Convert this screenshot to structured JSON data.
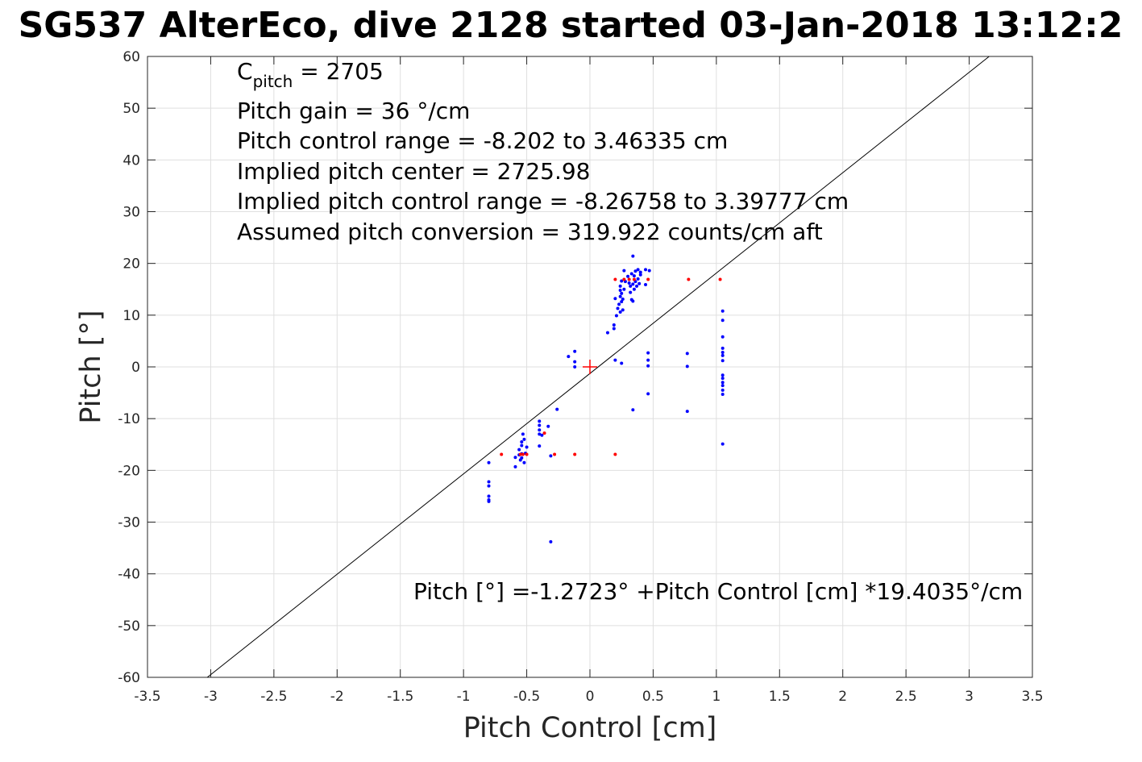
{
  "chart_data": {
    "type": "scatter",
    "title": "SG537 AlterEco, dive 2128 started 03-Jan-2018 13:12:2",
    "xlabel": "Pitch Control [cm]",
    "ylabel": "Pitch [°]",
    "xlim": [
      -3.5,
      3.5
    ],
    "ylim": [
      -60,
      60
    ],
    "xticks": [
      -3.5,
      -3,
      -2.5,
      -2,
      -1.5,
      -1,
      -0.5,
      0,
      0.5,
      1,
      1.5,
      2,
      2.5,
      3,
      3.5
    ],
    "yticks": [
      -60,
      -50,
      -40,
      -30,
      -20,
      -10,
      0,
      10,
      20,
      30,
      40,
      50,
      60
    ],
    "xtick_labels": [
      "-3.5",
      "-3",
      "-2.5",
      "-2",
      "-1.5",
      "-1",
      "-0.5",
      "0",
      "0.5",
      "1",
      "1.5",
      "2",
      "2.5",
      "3",
      "3.5"
    ],
    "ytick_labels": [
      "-60",
      "-50",
      "-40",
      "-30",
      "-20",
      "-10",
      "0",
      "10",
      "20",
      "30",
      "40",
      "50",
      "60"
    ],
    "grid": true,
    "colors": {
      "blue_points": "#0000ff",
      "red_points": "#ff0000",
      "fit_line": "#000000"
    },
    "annotations": {
      "c_pitch_base": "C",
      "c_pitch_sub": "pitch",
      "c_pitch_value": " = 2705",
      "gain": "Pitch gain = 36 °/cm",
      "range": "Pitch control range = -8.202 to 3.46335 cm",
      "center": "Implied pitch center = 2725.98",
      "implied_range": "Implied pitch control range = -8.26758 to 3.39777 cm",
      "conversion": "Assumed pitch conversion = 319.922 counts/cm aft",
      "fit_equation": "Pitch [°] =-1.2723° +Pitch Control [cm] *19.4035°/cm"
    },
    "fit": {
      "intercept": -1.2723,
      "slope": 19.4035
    },
    "center_marker": [
      0,
      0
    ],
    "series": [
      {
        "marker": "dot",
        "color": "blue",
        "points": [
          [
            -0.8,
            -18.5
          ],
          [
            -0.8,
            -22.2
          ],
          [
            -0.8,
            -23.0
          ],
          [
            -0.8,
            -25.0
          ],
          [
            -0.8,
            -25.7
          ],
          [
            -0.8,
            -26.0
          ],
          [
            -0.59,
            -17.5
          ],
          [
            -0.59,
            -19.3
          ],
          [
            -0.56,
            -16.0
          ],
          [
            -0.56,
            -17.0
          ],
          [
            -0.55,
            -18.0
          ],
          [
            -0.54,
            -14.5
          ],
          [
            -0.54,
            -15.2
          ],
          [
            -0.54,
            -16.8
          ],
          [
            -0.54,
            -17.6
          ],
          [
            -0.53,
            -13.0
          ],
          [
            -0.52,
            -14.0
          ],
          [
            -0.52,
            -18.5
          ],
          [
            -0.51,
            -16.7
          ],
          [
            -0.5,
            -15.5
          ],
          [
            -0.4,
            -10.5
          ],
          [
            -0.4,
            -11.3
          ],
          [
            -0.4,
            -12.2
          ],
          [
            -0.4,
            -13.0
          ],
          [
            -0.4,
            -15.3
          ],
          [
            -0.38,
            -13.2
          ],
          [
            -0.33,
            -11.5
          ],
          [
            -0.31,
            -17.2
          ],
          [
            -0.31,
            -33.8
          ],
          [
            -0.26,
            -8.2
          ],
          [
            -0.17,
            2.0
          ],
          [
            -0.12,
            3.0
          ],
          [
            -0.12,
            1.0
          ],
          [
            -0.12,
            0.0
          ],
          [
            0.2,
            1.3
          ],
          [
            0.25,
            0.7
          ],
          [
            0.34,
            -8.3
          ],
          [
            0.46,
            2.7
          ],
          [
            0.46,
            1.3
          ],
          [
            0.46,
            0.2
          ],
          [
            0.46,
            -5.2
          ],
          [
            0.77,
            2.6
          ],
          [
            0.77,
            0.1
          ],
          [
            0.77,
            -8.6
          ],
          [
            1.05,
            10.8
          ],
          [
            1.05,
            9.0
          ],
          [
            1.05,
            5.8
          ],
          [
            1.05,
            3.6
          ],
          [
            1.05,
            2.8
          ],
          [
            1.05,
            2.2
          ],
          [
            1.05,
            1.2
          ],
          [
            1.05,
            -1.6
          ],
          [
            1.05,
            -2.2
          ],
          [
            1.05,
            -3.0
          ],
          [
            1.05,
            -3.6
          ],
          [
            1.05,
            -4.5
          ],
          [
            1.05,
            -5.3
          ],
          [
            1.05,
            -14.9
          ],
          [
            0.14,
            6.6
          ],
          [
            0.19,
            7.4
          ],
          [
            0.19,
            8.1
          ],
          [
            0.21,
            9.9
          ],
          [
            0.22,
            11.3
          ],
          [
            0.2,
            13.2
          ],
          [
            0.23,
            12.1
          ],
          [
            0.24,
            10.6
          ],
          [
            0.24,
            13.6
          ],
          [
            0.24,
            14.8
          ],
          [
            0.24,
            15.6
          ],
          [
            0.25,
            12.6
          ],
          [
            0.25,
            14.2
          ],
          [
            0.25,
            16.6
          ],
          [
            0.26,
            11.0
          ],
          [
            0.26,
            13.1
          ],
          [
            0.27,
            15.0
          ],
          [
            0.27,
            18.6
          ],
          [
            0.28,
            16.5
          ],
          [
            0.3,
            17.5
          ],
          [
            0.31,
            16.2
          ],
          [
            0.32,
            14.4
          ],
          [
            0.32,
            15.6
          ],
          [
            0.33,
            13.0
          ],
          [
            0.33,
            18.0
          ],
          [
            0.34,
            12.7
          ],
          [
            0.34,
            16.0
          ],
          [
            0.34,
            21.4
          ],
          [
            0.35,
            15.0
          ],
          [
            0.35,
            17.6
          ],
          [
            0.36,
            16.5
          ],
          [
            0.36,
            18.5
          ],
          [
            0.37,
            15.6
          ],
          [
            0.38,
            17.0
          ],
          [
            0.38,
            18.8
          ],
          [
            0.39,
            16.1
          ],
          [
            0.4,
            17.8
          ],
          [
            0.4,
            18.3
          ],
          [
            0.44,
            15.9
          ],
          [
            0.44,
            18.8
          ],
          [
            0.47,
            18.6
          ]
        ]
      },
      {
        "marker": "dot",
        "color": "red",
        "points": [
          [
            -0.7,
            -16.9
          ],
          [
            -0.55,
            -16.9
          ],
          [
            -0.53,
            -16.9
          ],
          [
            -0.5,
            -16.9
          ],
          [
            -0.36,
            -12.8
          ],
          [
            -0.28,
            -16.9
          ],
          [
            -0.12,
            -16.9
          ],
          [
            0.2,
            -16.9
          ],
          [
            0.2,
            16.9
          ],
          [
            0.27,
            16.9
          ],
          [
            0.31,
            16.9
          ],
          [
            0.35,
            16.9
          ],
          [
            0.46,
            16.9
          ],
          [
            0.78,
            16.9
          ],
          [
            1.03,
            16.9
          ]
        ]
      }
    ]
  }
}
